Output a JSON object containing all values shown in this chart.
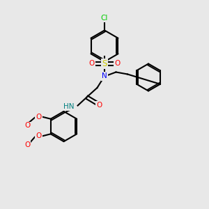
{
  "bg_color": "#e8e8e8",
  "bond_color": "#000000",
  "bond_lw": 1.5,
  "atom_colors": {
    "Cl": "#00cc00",
    "S": "#cccc00",
    "O": "#ff0000",
    "N": "#0000ff",
    "NH": "#008080",
    "C": "#000000"
  },
  "font_size": 7.5
}
